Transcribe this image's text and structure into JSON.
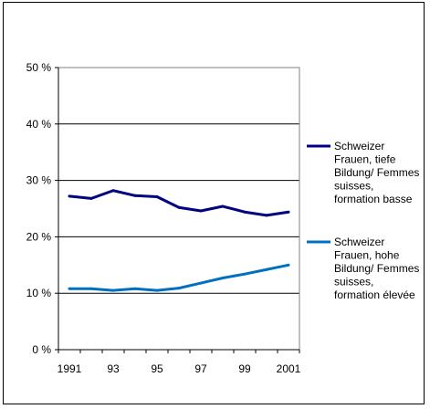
{
  "chart_data": {
    "type": "line",
    "title": "",
    "xlabel": "",
    "ylabel": "",
    "x": [
      1991,
      1992,
      1993,
      1994,
      1995,
      1996,
      1997,
      1998,
      1999,
      2000,
      2001
    ],
    "x_tick_labels": [
      "1991",
      "93",
      "95",
      "97",
      "99",
      "2001"
    ],
    "x_tick_values": [
      1991,
      1993,
      1995,
      1997,
      1999,
      2001
    ],
    "y_tick_labels": [
      "0 %",
      "10 %",
      "20 %",
      "30 %",
      "40 %",
      "50 %"
    ],
    "y_tick_values": [
      0,
      10,
      20,
      30,
      40,
      50
    ],
    "ylim": [
      0,
      50
    ],
    "grid": true,
    "legend_position": "right",
    "series": [
      {
        "name_lines": [
          "Schweizer",
          "Frauen, tiefe",
          "Bildung/ Femmes",
          "suisses,",
          "formation basse"
        ],
        "color": "#000080",
        "values": [
          27.2,
          26.8,
          28.2,
          27.3,
          27.1,
          25.2,
          24.6,
          25.4,
          24.4,
          23.8,
          24.4
        ]
      },
      {
        "name_lines": [
          "Schweizer",
          "Frauen, hohe",
          "Bildung/ Femmes",
          "suisses,",
          "formation élevée"
        ],
        "color": "#0070c0",
        "values": [
          10.8,
          10.8,
          10.5,
          10.8,
          10.5,
          10.9,
          11.8,
          12.7,
          13.4,
          14.2,
          15.0
        ]
      }
    ]
  }
}
